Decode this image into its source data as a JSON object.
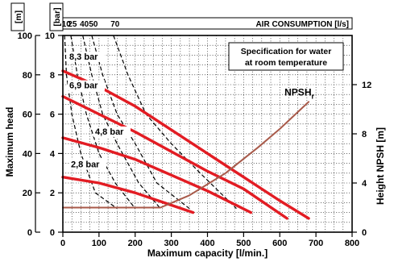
{
  "chart_data": {
    "type": "line",
    "x_axis": {
      "label": "Maximum capacity [l/min.]",
      "range": [
        0,
        800
      ],
      "ticks": [
        0,
        100,
        200,
        300,
        400,
        500,
        600,
        700,
        800
      ]
    },
    "y_axis_left_m": {
      "label": "Maximum head",
      "unit": "[m]",
      "range": [
        0,
        100
      ],
      "ticks": [
        0,
        20,
        40,
        60,
        80,
        100
      ]
    },
    "y_axis_left_bar": {
      "unit": "[bar]",
      "range": [
        0,
        10
      ],
      "ticks": [
        0,
        2,
        4,
        6,
        8,
        10
      ]
    },
    "y_axis_right": {
      "label": "Height NPSH [m]",
      "range": [
        0,
        16
      ],
      "ticks": [
        0,
        4,
        8,
        12
      ]
    },
    "air_consumption": {
      "label": "AIR CONSUMPTION [l/s]",
      "tick_labels": [
        "10",
        "25",
        "40",
        "50",
        "70"
      ],
      "curves": [
        {
          "name": "10",
          "points": [
            [
              5,
              100
            ],
            [
              10,
              80
            ],
            [
              25,
              60
            ],
            [
              50,
              40
            ],
            [
              90,
              20
            ],
            [
              150,
              12
            ]
          ]
        },
        {
          "name": "25",
          "points": [
            [
              22,
              100
            ],
            [
              40,
              80
            ],
            [
              65,
              60
            ],
            [
              100,
              40
            ],
            [
              145,
              25
            ],
            [
              200,
              12
            ]
          ]
        },
        {
          "name": "40",
          "points": [
            [
              55,
              100
            ],
            [
              80,
              80
            ],
            [
              110,
              60
            ],
            [
              150,
              45
            ],
            [
              210,
              25
            ],
            [
              270,
              12
            ]
          ]
        },
        {
          "name": "50",
          "points": [
            [
              80,
              100
            ],
            [
              110,
              80
            ],
            [
              150,
              60
            ],
            [
              200,
              45
            ],
            [
              260,
              25
            ],
            [
              350,
              12
            ]
          ]
        },
        {
          "name": "70",
          "points": [
            [
              140,
              100
            ],
            [
              180,
              80
            ],
            [
              230,
              60
            ],
            [
              300,
              45
            ],
            [
              380,
              30
            ],
            [
              480,
              12
            ]
          ]
        }
      ]
    },
    "annotation": [
      "Specification for water",
      "at room temperature"
    ],
    "grid": true,
    "grid_step": [
      25,
      5
    ],
    "series": [
      {
        "name": "8,3 bar",
        "color": "#e21c23",
        "x": [
          0,
          100,
          200,
          300,
          400,
          500,
          600,
          680
        ],
        "y": [
          82,
          74,
          64,
          52,
          40,
          28,
          16,
          7
        ]
      },
      {
        "name": "6,9 bar",
        "color": "#e21c23",
        "x": [
          0,
          100,
          200,
          300,
          400,
          500,
          620
        ],
        "y": [
          69,
          60,
          51,
          41,
          31,
          22,
          7
        ]
      },
      {
        "name": "4,8 bar",
        "color": "#e21c23",
        "x": [
          0,
          100,
          200,
          300,
          400,
          520
        ],
        "y": [
          48,
          43,
          37,
          29,
          21,
          10
        ]
      },
      {
        "name": "2,8 bar",
        "color": "#e21c23",
        "x": [
          0,
          100,
          200,
          280,
          360
        ],
        "y": [
          28,
          25,
          20,
          15,
          10
        ]
      },
      {
        "name": "NPSH",
        "color": "#a85a4a",
        "axis": "right",
        "x": [
          0,
          270,
          350,
          450,
          540,
          600,
          680
        ],
        "y": [
          2.0,
          2.0,
          3.0,
          4.8,
          6.9,
          8.4,
          10.6
        ]
      }
    ],
    "npsh_label": {
      "main": "NPSH",
      "sub": "r"
    }
  }
}
